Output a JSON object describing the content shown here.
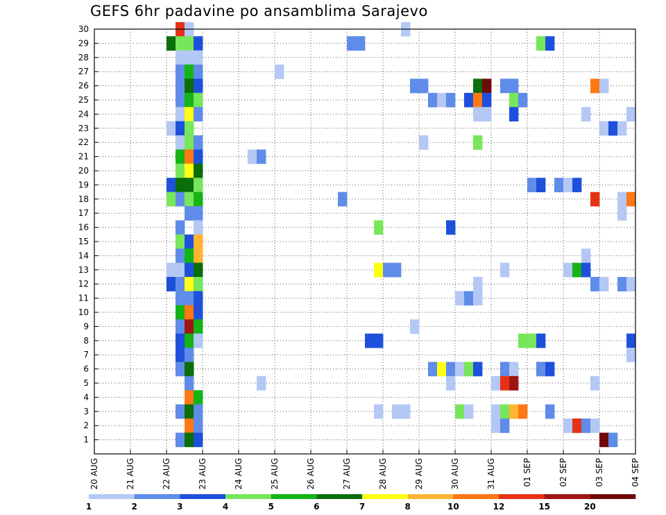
{
  "chart_data": {
    "type": "heatmap",
    "title": "GEFS 6hr padavine po ansamblima Sarajevo",
    "x_start": "2025-08-20T00:00",
    "x_end": "2025-09-04T00:00",
    "x_step_hours": 6,
    "x_tick_labels": [
      "20 AUG",
      "21 AUG",
      "22 AUG",
      "23 AUG",
      "24 AUG",
      "25 AUG",
      "26 AUG",
      "27 AUG",
      "28 AUG",
      "29 AUG",
      "30 AUG",
      "31 AUG",
      "01 SEP",
      "02 SEP",
      "03 SEP",
      "04 SEP"
    ],
    "y_tick_labels": [
      1,
      2,
      3,
      4,
      5,
      6,
      7,
      8,
      9,
      10,
      11,
      12,
      13,
      14,
      15,
      16,
      17,
      18,
      19,
      20,
      21,
      22,
      23,
      24,
      25,
      26,
      27,
      28,
      29,
      30
    ],
    "ylim": [
      0,
      30
    ],
    "grid": true,
    "colorbar": {
      "levels": [
        1,
        2,
        3,
        4,
        5,
        6,
        7,
        8,
        10,
        12,
        15,
        20
      ],
      "labels": [
        "1",
        "2",
        "3",
        "4",
        "5",
        "6",
        "7",
        "8",
        "10",
        "12",
        "15",
        "20"
      ],
      "colors": [
        "#b4c8f5",
        "#5f8ce8",
        "#1e50dc",
        "#78e65a",
        "#14b414",
        "#0a6e0a",
        "#ffff14",
        "#ffb432",
        "#ff7814",
        "#e63214",
        "#a01414",
        "#6e0a0a"
      ]
    },
    "cells": [
      [
        9,
        30,
        9
      ],
      [
        10,
        30,
        0
      ],
      [
        34,
        30,
        0
      ],
      [
        8,
        29,
        5
      ],
      [
        9,
        29,
        3
      ],
      [
        10,
        29,
        3
      ],
      [
        11,
        29,
        2
      ],
      [
        28,
        29,
        1
      ],
      [
        29,
        29,
        1
      ],
      [
        49,
        29,
        3
      ],
      [
        50,
        29,
        2
      ],
      [
        9,
        28,
        0
      ],
      [
        10,
        28,
        0
      ],
      [
        11,
        28,
        0
      ],
      [
        9,
        27,
        1
      ],
      [
        10,
        27,
        4
      ],
      [
        11,
        27,
        1
      ],
      [
        20,
        27,
        0
      ],
      [
        9,
        26,
        1
      ],
      [
        10,
        26,
        5
      ],
      [
        11,
        26,
        2
      ],
      [
        35,
        26,
        1
      ],
      [
        36,
        26,
        1
      ],
      [
        42,
        26,
        5
      ],
      [
        43,
        26,
        11
      ],
      [
        45,
        26,
        1
      ],
      [
        46,
        26,
        1
      ],
      [
        55,
        26,
        8
      ],
      [
        56,
        26,
        0
      ],
      [
        9,
        25,
        1
      ],
      [
        10,
        25,
        4
      ],
      [
        11,
        25,
        3
      ],
      [
        37,
        25,
        1
      ],
      [
        38,
        25,
        0
      ],
      [
        39,
        25,
        1
      ],
      [
        41,
        25,
        2
      ],
      [
        42,
        25,
        8
      ],
      [
        43,
        25,
        2
      ],
      [
        46,
        25,
        3
      ],
      [
        47,
        25,
        1
      ],
      [
        9,
        24,
        0
      ],
      [
        10,
        24,
        6
      ],
      [
        11,
        24,
        1
      ],
      [
        42,
        24,
        0
      ],
      [
        43,
        24,
        0
      ],
      [
        46,
        24,
        2
      ],
      [
        54,
        24,
        0
      ],
      [
        59,
        24,
        0
      ],
      [
        8,
        23,
        0
      ],
      [
        9,
        23,
        2
      ],
      [
        10,
        23,
        3
      ],
      [
        56,
        23,
        0
      ],
      [
        57,
        23,
        2
      ],
      [
        58,
        23,
        0
      ],
      [
        9,
        22,
        0
      ],
      [
        10,
        22,
        3
      ],
      [
        11,
        22,
        1
      ],
      [
        36,
        22,
        0
      ],
      [
        42,
        22,
        3
      ],
      [
        9,
        21,
        4
      ],
      [
        10,
        21,
        8
      ],
      [
        11,
        21,
        2
      ],
      [
        17,
        21,
        0
      ],
      [
        18,
        21,
        1
      ],
      [
        9,
        20,
        3
      ],
      [
        10,
        20,
        6
      ],
      [
        11,
        20,
        5
      ],
      [
        8,
        19,
        2
      ],
      [
        9,
        19,
        5
      ],
      [
        10,
        19,
        5
      ],
      [
        11,
        19,
        3
      ],
      [
        48,
        19,
        1
      ],
      [
        49,
        19,
        2
      ],
      [
        51,
        19,
        1
      ],
      [
        52,
        19,
        0
      ],
      [
        53,
        19,
        2
      ],
      [
        8,
        18,
        3
      ],
      [
        9,
        18,
        1
      ],
      [
        10,
        18,
        3
      ],
      [
        11,
        18,
        4
      ],
      [
        27,
        18,
        1
      ],
      [
        55,
        18,
        9
      ],
      [
        58,
        18,
        0
      ],
      [
        59,
        18,
        8
      ],
      [
        10,
        17,
        1
      ],
      [
        11,
        17,
        1
      ],
      [
        58,
        17,
        0
      ],
      [
        9,
        16,
        1
      ],
      [
        11,
        16,
        0
      ],
      [
        31,
        16,
        3
      ],
      [
        39,
        16,
        2
      ],
      [
        9,
        15,
        3
      ],
      [
        10,
        15,
        2
      ],
      [
        11,
        15,
        7
      ],
      [
        9,
        14,
        1
      ],
      [
        10,
        14,
        4
      ],
      [
        11,
        14,
        7
      ],
      [
        54,
        14,
        0
      ],
      [
        8,
        13,
        0
      ],
      [
        9,
        13,
        0
      ],
      [
        10,
        13,
        2
      ],
      [
        11,
        13,
        5
      ],
      [
        31,
        13,
        6
      ],
      [
        32,
        13,
        1
      ],
      [
        33,
        13,
        1
      ],
      [
        45,
        13,
        0
      ],
      [
        52,
        13,
        0
      ],
      [
        53,
        13,
        4
      ],
      [
        54,
        13,
        2
      ],
      [
        8,
        12,
        2
      ],
      [
        9,
        12,
        1
      ],
      [
        10,
        12,
        6
      ],
      [
        11,
        12,
        3
      ],
      [
        42,
        12,
        0
      ],
      [
        55,
        12,
        1
      ],
      [
        56,
        12,
        0
      ],
      [
        58,
        12,
        1
      ],
      [
        59,
        12,
        0
      ],
      [
        9,
        11,
        1
      ],
      [
        10,
        11,
        1
      ],
      [
        11,
        11,
        2
      ],
      [
        40,
        11,
        0
      ],
      [
        41,
        11,
        1
      ],
      [
        42,
        11,
        0
      ],
      [
        9,
        10,
        4
      ],
      [
        10,
        10,
        8
      ],
      [
        11,
        10,
        2
      ],
      [
        9,
        9,
        1
      ],
      [
        10,
        9,
        10
      ],
      [
        11,
        9,
        4
      ],
      [
        35,
        9,
        0
      ],
      [
        9,
        8,
        2
      ],
      [
        10,
        8,
        4
      ],
      [
        11,
        8,
        0
      ],
      [
        30,
        8,
        2
      ],
      [
        31,
        8,
        2
      ],
      [
        47,
        8,
        3
      ],
      [
        48,
        8,
        3
      ],
      [
        49,
        8,
        2
      ],
      [
        59,
        8,
        2
      ],
      [
        9,
        7,
        2
      ],
      [
        10,
        7,
        1
      ],
      [
        59,
        7,
        0
      ],
      [
        9,
        6,
        1
      ],
      [
        10,
        6,
        5
      ],
      [
        37,
        6,
        1
      ],
      [
        38,
        6,
        6
      ],
      [
        39,
        6,
        1
      ],
      [
        40,
        6,
        0
      ],
      [
        41,
        6,
        3
      ],
      [
        42,
        6,
        2
      ],
      [
        45,
        6,
        1
      ],
      [
        46,
        6,
        0
      ],
      [
        49,
        6,
        1
      ],
      [
        50,
        6,
        2
      ],
      [
        10,
        5,
        1
      ],
      [
        18,
        5,
        0
      ],
      [
        39,
        5,
        0
      ],
      [
        44,
        5,
        0
      ],
      [
        45,
        5,
        9
      ],
      [
        46,
        5,
        10
      ],
      [
        55,
        5,
        0
      ],
      [
        10,
        4,
        8
      ],
      [
        11,
        4,
        4
      ],
      [
        9,
        3,
        1
      ],
      [
        10,
        3,
        5
      ],
      [
        11,
        3,
        1
      ],
      [
        31,
        3,
        0
      ],
      [
        33,
        3,
        0
      ],
      [
        34,
        3,
        0
      ],
      [
        40,
        3,
        3
      ],
      [
        41,
        3,
        0
      ],
      [
        44,
        3,
        0
      ],
      [
        45,
        3,
        3
      ],
      [
        46,
        3,
        7
      ],
      [
        47,
        3,
        8
      ],
      [
        50,
        3,
        1
      ],
      [
        10,
        2,
        8
      ],
      [
        11,
        2,
        1
      ],
      [
        44,
        2,
        0
      ],
      [
        45,
        2,
        1
      ],
      [
        52,
        2,
        0
      ],
      [
        53,
        2,
        9
      ],
      [
        54,
        2,
        1
      ],
      [
        55,
        2,
        0
      ],
      [
        9,
        1,
        1
      ],
      [
        10,
        1,
        5
      ],
      [
        11,
        1,
        2
      ],
      [
        56,
        1,
        11
      ],
      [
        57,
        1,
        1
      ]
    ]
  }
}
